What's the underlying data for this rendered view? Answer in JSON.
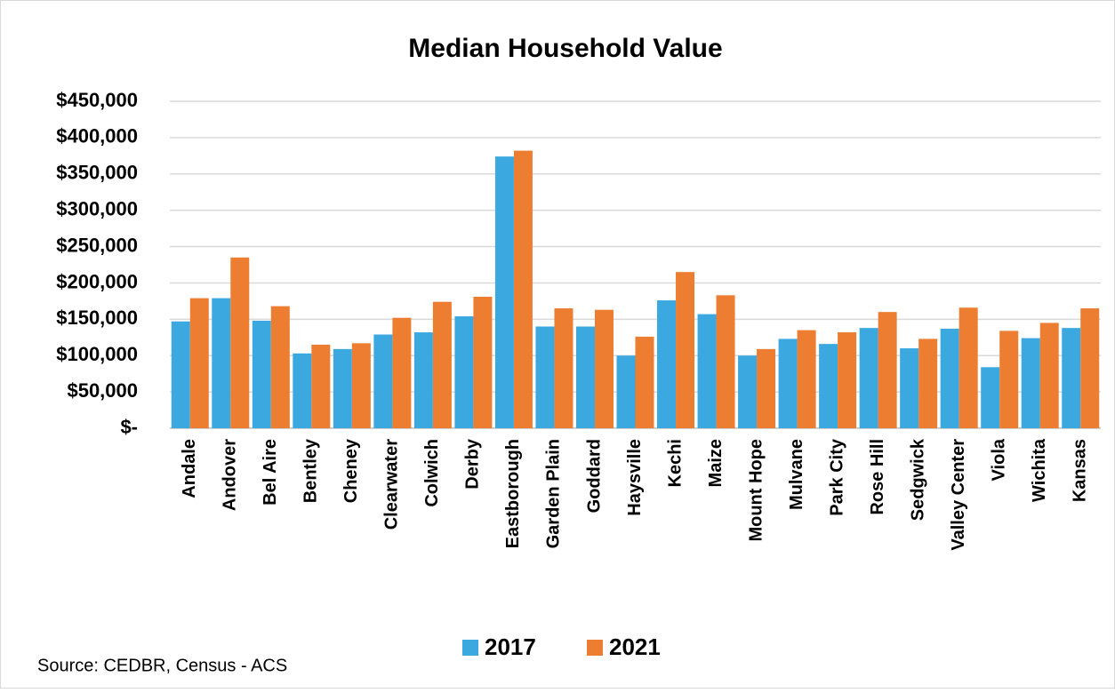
{
  "chart_data": {
    "type": "bar",
    "title": "Median Household Value",
    "categories": [
      "Andale",
      "Andover",
      "Bel Aire",
      "Bentley",
      "Cheney",
      "Clearwater",
      "Colwich",
      "Derby",
      "Eastborough",
      "Garden Plain",
      "Goddard",
      "Haysville",
      "Kechi",
      "Maize",
      "Mount Hope",
      "Mulvane",
      "Park City",
      "Rose Hill",
      "Sedgwick",
      "Valley Center",
      "Viola",
      "Wichita",
      "Kansas"
    ],
    "series": [
      {
        "name": "2017",
        "color": "#3ba9e0",
        "values": [
          147000,
          179000,
          148000,
          103000,
          109000,
          129000,
          132000,
          154000,
          374000,
          140000,
          140000,
          100000,
          176000,
          157000,
          100000,
          123000,
          116000,
          138000,
          110000,
          137000,
          84000,
          124000,
          138000
        ]
      },
      {
        "name": "2021",
        "color": "#ed7d31",
        "values": [
          179000,
          235000,
          168000,
          115000,
          117000,
          152000,
          174000,
          181000,
          382000,
          165000,
          163000,
          126000,
          215000,
          183000,
          109000,
          135000,
          132000,
          160000,
          123000,
          166000,
          134000,
          145000,
          165000
        ]
      }
    ],
    "ylim": [
      0,
      450000
    ],
    "yticks": [
      {
        "value": 0,
        "label": "$-"
      },
      {
        "value": 50000,
        "label": "$50,000"
      },
      {
        "value": 100000,
        "label": "$100,000"
      },
      {
        "value": 150000,
        "label": "$150,000"
      },
      {
        "value": 200000,
        "label": "$200,000"
      },
      {
        "value": 250000,
        "label": "$250,000"
      },
      {
        "value": 300000,
        "label": "$300,000"
      },
      {
        "value": 350000,
        "label": "$350,000"
      },
      {
        "value": 400000,
        "label": "$400,000"
      },
      {
        "value": 450000,
        "label": "$450,000"
      }
    ],
    "grid": true,
    "legend": "bottom",
    "source": "Source: CEDBR, Census - ACS"
  }
}
